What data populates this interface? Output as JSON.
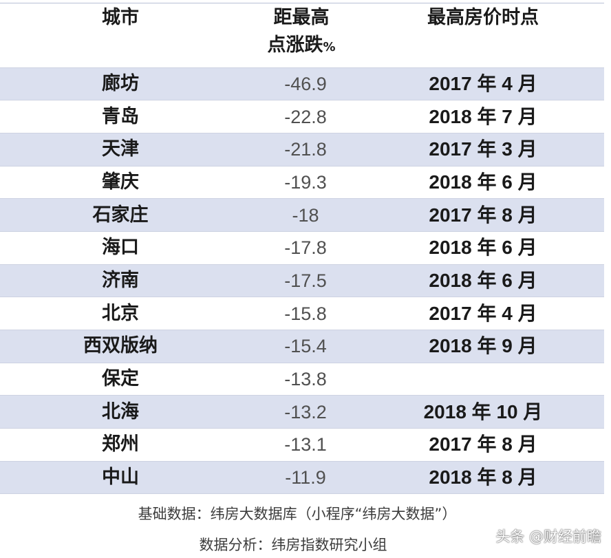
{
  "table": {
    "headers": {
      "city": "城市",
      "change_line1": "距最高",
      "change_line2": "点涨跌",
      "change_unit": "%",
      "peak": "最高房价时点"
    },
    "rows": [
      {
        "city": "廊坊",
        "change": "-46.9",
        "peak": "2017 年 4 月"
      },
      {
        "city": "青岛",
        "change": "-22.8",
        "peak": "2018 年 7 月"
      },
      {
        "city": "天津",
        "change": "-21.8",
        "peak": "2017 年 3 月"
      },
      {
        "city": "肇庆",
        "change": "-19.3",
        "peak": "2018 年 6 月"
      },
      {
        "city": "石家庄",
        "change": "-18",
        "peak": "2017 年 8 月"
      },
      {
        "city": "海口",
        "change": "-17.8",
        "peak": "2018 年 6 月"
      },
      {
        "city": "济南",
        "change": "-17.5",
        "peak": "2018 年 6 月"
      },
      {
        "city": "北京",
        "change": "-15.8",
        "peak": "2017 年 4 月"
      },
      {
        "city": "西双版纳",
        "change": "-15.4",
        "peak": "2018 年 9 月"
      },
      {
        "city": "保定",
        "change": "-13.8",
        "peak": ""
      },
      {
        "city": "北海",
        "change": "-13.2",
        "peak": "2018 年 10 月"
      },
      {
        "city": "郑州",
        "change": "-13.1",
        "peak": "2017 年 8 月"
      },
      {
        "city": "中山",
        "change": "-11.9",
        "peak": "2018 年 8 月"
      }
    ],
    "row_shade_color": "#dbe0ef"
  },
  "notes": {
    "source": "基础数据：纬房大数据库（小程序“纬房大数据”）",
    "analysis": "数据分析：纬房指数研究小组"
  },
  "watermark": "头条 @财经前瞻"
}
